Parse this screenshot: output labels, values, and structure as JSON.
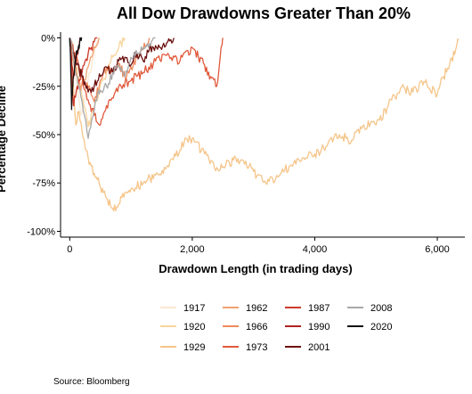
{
  "chart_data": {
    "type": "line",
    "title": "All Dow Drawdowns Greater Than 20%",
    "xlabel": "Drawdown Length (in trading days)",
    "ylabel": "Percentage Decline",
    "xlim": [
      -150,
      6450
    ],
    "ylim": [
      -103,
      3
    ],
    "x_ticks": [
      {
        "value": 0,
        "label": "0"
      },
      {
        "value": 2000,
        "label": "2,000"
      },
      {
        "value": 4000,
        "label": "4,000"
      },
      {
        "value": 6000,
        "label": "6,000"
      }
    ],
    "y_ticks": [
      {
        "value": 0,
        "label": "0%"
      },
      {
        "value": -25,
        "label": "-25%"
      },
      {
        "value": -50,
        "label": "-50%"
      },
      {
        "value": -75,
        "label": "-75%"
      },
      {
        "value": -100,
        "label": "-100%"
      }
    ],
    "grid": false,
    "legend_position": "bottom",
    "series": [
      {
        "name": "1917",
        "color": "#fbe7d2",
        "x": [
          0,
          60,
          120,
          180,
          250,
          320,
          400,
          470
        ],
        "y": [
          0,
          -14,
          -26,
          -40,
          -30,
          -18,
          -8,
          0
        ]
      },
      {
        "name": "1920",
        "color": "#f7d59e",
        "x": [
          0,
          100,
          200,
          300,
          400,
          500,
          600,
          700,
          800,
          900
        ],
        "y": [
          0,
          -15,
          -30,
          -46,
          -36,
          -24,
          -18,
          -10,
          -5,
          0
        ]
      },
      {
        "name": "1929",
        "color": "#f5c58a",
        "x": [
          0,
          50,
          100,
          150,
          200,
          300,
          400,
          500,
          600,
          700,
          800,
          900,
          1000,
          1200,
          1400,
          1600,
          1800,
          1900,
          2000,
          2200,
          2400,
          2600,
          2800,
          3000,
          3200,
          3400,
          3600,
          3800,
          4000,
          4200,
          4400,
          4600,
          4800,
          5000,
          5200,
          5400,
          5600,
          5800,
          6000,
          6100,
          6200,
          6300,
          6350
        ],
        "y": [
          0,
          -20,
          -45,
          -38,
          -48,
          -62,
          -70,
          -77,
          -83,
          -88,
          -86,
          -80,
          -78,
          -75,
          -71,
          -66,
          -58,
          -52,
          -52,
          -60,
          -67,
          -64,
          -63,
          -69,
          -75,
          -72,
          -66,
          -62,
          -60,
          -56,
          -50,
          -53,
          -45,
          -45,
          -35,
          -26,
          -28,
          -23,
          -29,
          -20,
          -14,
          -6,
          -1
        ]
      },
      {
        "name": "1962",
        "color": "#f0a070",
        "x": [
          0,
          60,
          120,
          180,
          240,
          300,
          360,
          420,
          480
        ],
        "y": [
          0,
          -12,
          -20,
          -27,
          -22,
          -15,
          -10,
          -5,
          0
        ]
      },
      {
        "name": "1966",
        "color": "#ee8a5c",
        "x": [
          0,
          100,
          200,
          300,
          400,
          500,
          600,
          700,
          800,
          900,
          1000,
          1100,
          1200,
          1300
        ],
        "y": [
          0,
          -10,
          -20,
          -26,
          -33,
          -22,
          -15,
          -18,
          -13,
          -20,
          -15,
          -10,
          -6,
          0
        ]
      },
      {
        "name": "1973",
        "color": "#e05a3c",
        "x": [
          0,
          100,
          200,
          300,
          400,
          500,
          600,
          800,
          1000,
          1200,
          1400,
          1600,
          1800,
          2000,
          2100,
          2200,
          2300,
          2400,
          2450,
          2480,
          2500
        ],
        "y": [
          0,
          -10,
          -20,
          -32,
          -40,
          -45,
          -35,
          -25,
          -22,
          -18,
          -12,
          -8,
          -12,
          -5,
          -10,
          -14,
          -20,
          -25,
          -12,
          -4,
          0
        ]
      },
      {
        "name": "1987",
        "color": "#cd3a2a",
        "x": [
          0,
          20,
          40,
          60,
          80,
          120,
          160,
          200,
          250,
          300,
          350,
          400,
          450
        ],
        "y": [
          0,
          -12,
          -25,
          -35,
          -30,
          -25,
          -22,
          -18,
          -12,
          -8,
          -5,
          -2,
          0
        ]
      },
      {
        "name": "1990",
        "color": "#b22222",
        "x": [
          0,
          20,
          40,
          60,
          80,
          100,
          120,
          140,
          160,
          180
        ],
        "y": [
          0,
          -8,
          -15,
          -21,
          -17,
          -12,
          -8,
          -5,
          -2,
          0
        ]
      },
      {
        "name": "2001",
        "color": "#6b0f0f",
        "x": [
          0,
          100,
          200,
          300,
          400,
          500,
          600,
          700,
          800,
          900,
          1000,
          1100,
          1200,
          1300,
          1400,
          1500,
          1600,
          1700
        ],
        "y": [
          0,
          -12,
          -20,
          -28,
          -25,
          -20,
          -15,
          -18,
          -12,
          -10,
          -14,
          -8,
          -12,
          -6,
          -4,
          -6,
          -2,
          0
        ]
      },
      {
        "name": "2008",
        "color": "#a8a8a8",
        "x": [
          0,
          60,
          120,
          180,
          240,
          300,
          360,
          420,
          500,
          600,
          700,
          800,
          900,
          1000,
          1100,
          1200,
          1300,
          1400
        ],
        "y": [
          0,
          -10,
          -20,
          -30,
          -40,
          -52,
          -42,
          -32,
          -27,
          -25,
          -18,
          -14,
          -20,
          -10,
          -8,
          -5,
          -3,
          0
        ]
      },
      {
        "name": "2020",
        "color": "#111111",
        "x": [
          0,
          10,
          20,
          30,
          40,
          50,
          60,
          80,
          100,
          120,
          140,
          160,
          180,
          200
        ],
        "y": [
          0,
          -8,
          -20,
          -37,
          -30,
          -25,
          -20,
          -15,
          -10,
          -8,
          -5,
          -3,
          -1,
          0
        ]
      }
    ]
  },
  "source": "Source:  Bloomberg"
}
